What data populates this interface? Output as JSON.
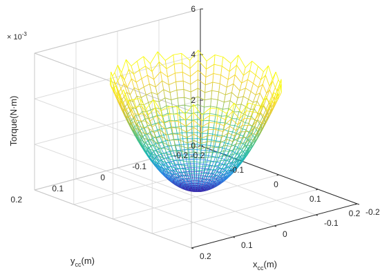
{
  "chart_data": {
    "type": "surface",
    "title": "",
    "zlabel": "Torque(N·m)",
    "xlabel": {
      "main": "x",
      "sub": "cc",
      "unit": "(m)"
    },
    "ylabel": {
      "main": "y",
      "sub": "cc",
      "unit": "(m)"
    },
    "exponent_label": {
      "prefix": "× 10",
      "power": "-3"
    },
    "x_ticks": [
      "-0.2",
      "-0.1",
      "0",
      "0.1",
      "0.2"
    ],
    "y_ticks": [
      "-0.2",
      "-0.1",
      "0",
      "0.1",
      "0.2"
    ],
    "z_ticks": [
      "0",
      "2",
      "4",
      "6"
    ],
    "x_tick_values": [
      -0.2,
      -0.1,
      0,
      0.1,
      0.2
    ],
    "y_tick_values": [
      -0.2,
      -0.1,
      0,
      0.1,
      0.2
    ],
    "z_tick_values": [
      0,
      2,
      4,
      6
    ],
    "xlim": [
      -0.2,
      0.2
    ],
    "ylim": [
      -0.2,
      0.2
    ],
    "zlim": [
      0,
      6
    ],
    "z_scale": "1e-3",
    "surface": {
      "shape": "paraboloid bowl over a circular disk",
      "center": [
        0,
        0
      ],
      "radius": 0.15,
      "z_min": 0.3,
      "z_max": 5.0,
      "grid": "polar mesh, wavy scalloped rim"
    },
    "colormap": [
      "#3e26a8",
      "#2e8ce8",
      "#19b5b5",
      "#4cc284",
      "#b9c13c",
      "#f3d02c",
      "#f9fb0e"
    ],
    "grid": true
  }
}
